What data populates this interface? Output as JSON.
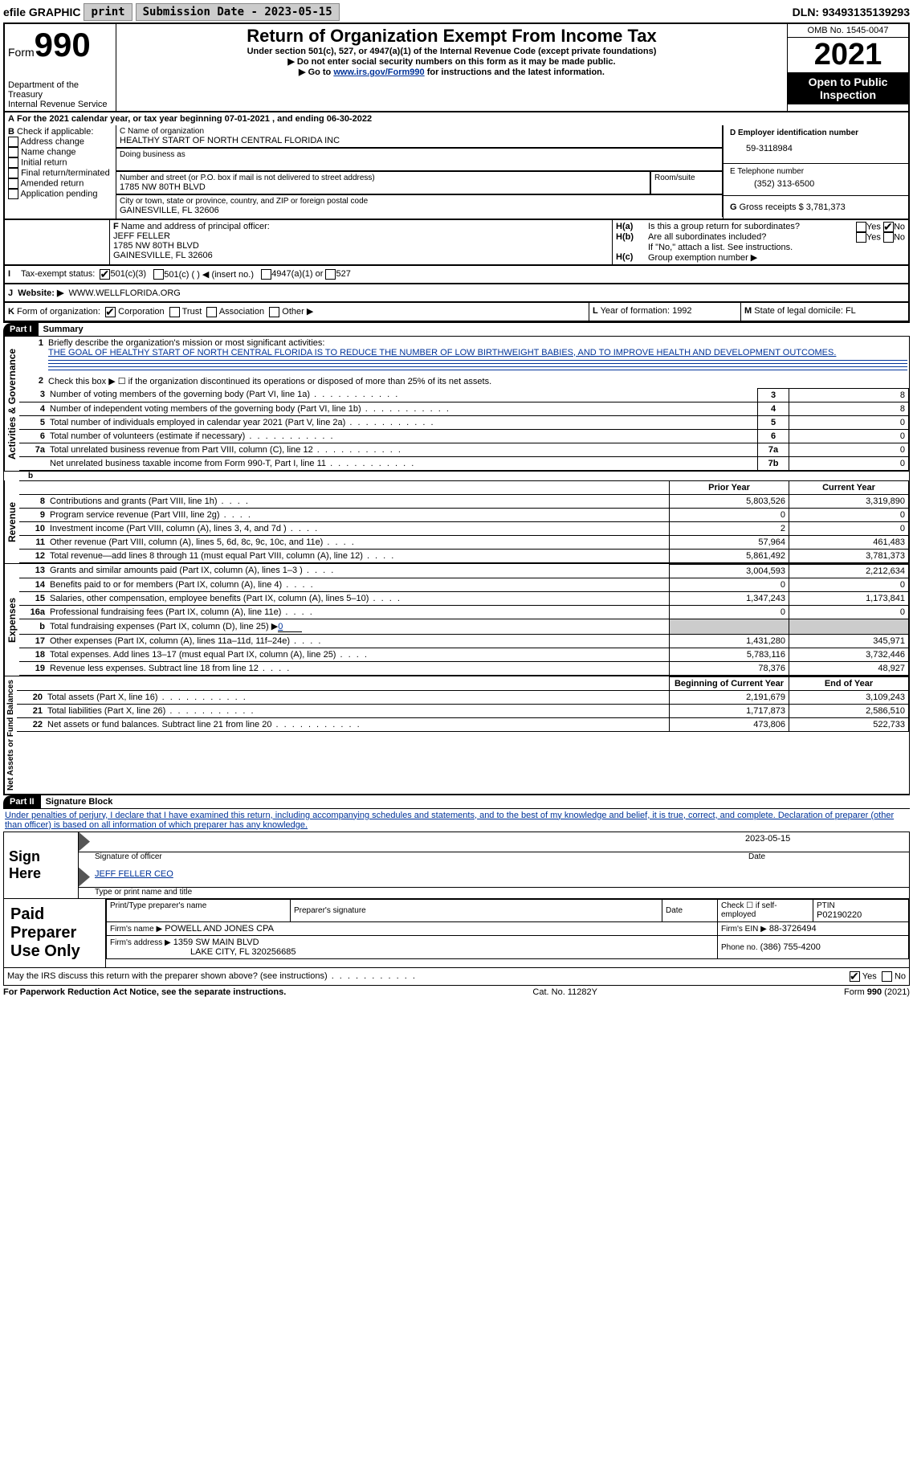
{
  "topbar": {
    "efile": "efile GRAPHIC",
    "print": "print",
    "sub_label": "Submission Date - 2023-05-15",
    "dln_label": "DLN: 93493135139293"
  },
  "header": {
    "form_word": "Form",
    "form_num": "990",
    "dept": "Department of the Treasury",
    "irs": "Internal Revenue Service",
    "title": "Return of Organization Exempt From Income Tax",
    "subtitle": "Under section 501(c), 527, or 4947(a)(1) of the Internal Revenue Code (except private foundations)",
    "line1": "▶ Do not enter social security numbers on this form as it may be made public.",
    "line2_pre": "▶ Go to ",
    "line2_link": "www.irs.gov/Form990",
    "line2_post": " for instructions and the latest information.",
    "omb": "OMB No. 1545-0047",
    "year": "2021",
    "open": "Open to Public Inspection"
  },
  "section_a": {
    "text_pre": "For the 2021 calendar year, or tax year beginning ",
    "begin": "07-01-2021",
    "mid": " , and ending ",
    "end": "06-30-2022"
  },
  "section_b": {
    "label": "B",
    "check_if": "Check if applicable:",
    "items": [
      "Address change",
      "Name change",
      "Initial return",
      "Final return/terminated",
      "Amended return",
      "Application pending"
    ]
  },
  "section_c": {
    "label_name": "C Name of organization",
    "org_name": "HEALTHY START OF NORTH CENTRAL FLORIDA INC",
    "dba_label": "Doing business as",
    "addr_label": "Number and street (or P.O. box if mail is not delivered to street address)",
    "room_label": "Room/suite",
    "addr": "1785 NW 80TH BLVD",
    "city_label": "City or town, state or province, country, and ZIP or foreign postal code",
    "city": "GAINESVILLE, FL  32606"
  },
  "section_d": {
    "label": "D Employer identification number",
    "ein": "59-3118984"
  },
  "section_e": {
    "label": "E Telephone number",
    "phone": "(352) 313-6500"
  },
  "section_g": {
    "label": "G",
    "text": "Gross receipts $",
    "amount": "3,781,373"
  },
  "section_f": {
    "label": "F",
    "text": "Name and address of principal officer:",
    "name": "JEFF FELLER",
    "addr1": "1785 NW 80TH BLVD",
    "addr2": "GAINESVILLE, FL  32606"
  },
  "section_h": {
    "a_label": "H(a)",
    "a_text": "Is this a group return for subordinates?",
    "b_label": "H(b)",
    "b_text": "Are all subordinates included?",
    "b_note": "If \"No,\" attach a list. See instructions.",
    "c_label": "H(c)",
    "c_text": "Group exemption number ▶",
    "yes": "Yes",
    "no": "No"
  },
  "section_i": {
    "label": "I",
    "text": "Tax-exempt status:",
    "opt1": "501(c)(3)",
    "opt2": "501(c) (   ) ◀ (insert no.)",
    "opt3": "4947(a)(1) or",
    "opt4": "527"
  },
  "section_j": {
    "label": "J",
    "text": "Website: ▶",
    "url": "WWW.WELLFLORIDA.ORG"
  },
  "section_k": {
    "label": "K",
    "text": "Form of organization:",
    "corp": "Corporation",
    "trust": "Trust",
    "assoc": "Association",
    "other": "Other ▶"
  },
  "section_l": {
    "label": "L",
    "text": "Year of formation: 1992"
  },
  "section_m": {
    "label": "M",
    "text": "State of legal domicile: FL"
  },
  "part1": {
    "label": "Part I",
    "title": "Summary",
    "line1_label": "1",
    "line1_text": "Briefly describe the organization's mission or most significant activities:",
    "mission": "THE GOAL OF HEALTHY START OF NORTH CENTRAL FLORIDA IS TO REDUCE THE NUMBER OF LOW BIRTHWEIGHT BABIES, AND TO IMPROVE HEALTH AND DEVELOPMENT OUTCOMES.",
    "line2_label": "2",
    "line2_text": "Check this box ▶ ☐ if the organization discontinued its operations or disposed of more than 25% of its net assets.",
    "vert_ag": "Activities & Governance",
    "vert_rev": "Revenue",
    "vert_exp": "Expenses",
    "vert_net": "Net Assets or Fund Balances",
    "rows_ag": [
      {
        "n": "3",
        "t": "Number of voting members of the governing body (Part VI, line 1a)",
        "box": "3",
        "v": "8"
      },
      {
        "n": "4",
        "t": "Number of independent voting members of the governing body (Part VI, line 1b)",
        "box": "4",
        "v": "8"
      },
      {
        "n": "5",
        "t": "Total number of individuals employed in calendar year 2021 (Part V, line 2a)",
        "box": "5",
        "v": "0"
      },
      {
        "n": "6",
        "t": "Total number of volunteers (estimate if necessary)",
        "box": "6",
        "v": "0"
      },
      {
        "n": "7a",
        "t": "Total unrelated business revenue from Part VIII, column (C), line 12",
        "box": "7a",
        "v": "0"
      },
      {
        "n": "",
        "t": "Net unrelated business taxable income from Form 990-T, Part I, line 11",
        "box": "7b",
        "v": "0"
      }
    ],
    "col_prior": "Prior Year",
    "col_current": "Current Year",
    "rows_rev": [
      {
        "n": "8",
        "t": "Contributions and grants (Part VIII, line 1h)",
        "p": "5,803,526",
        "c": "3,319,890"
      },
      {
        "n": "9",
        "t": "Program service revenue (Part VIII, line 2g)",
        "p": "0",
        "c": "0"
      },
      {
        "n": "10",
        "t": "Investment income (Part VIII, column (A), lines 3, 4, and 7d )",
        "p": "2",
        "c": "0"
      },
      {
        "n": "11",
        "t": "Other revenue (Part VIII, column (A), lines 5, 6d, 8c, 9c, 10c, and 11e)",
        "p": "57,964",
        "c": "461,483"
      },
      {
        "n": "12",
        "t": "Total revenue—add lines 8 through 11 (must equal Part VIII, column (A), line 12)",
        "p": "5,861,492",
        "c": "3,781,373"
      }
    ],
    "rows_exp": [
      {
        "n": "13",
        "t": "Grants and similar amounts paid (Part IX, column (A), lines 1–3 )",
        "p": "3,004,593",
        "c": "2,212,634"
      },
      {
        "n": "14",
        "t": "Benefits paid to or for members (Part IX, column (A), line 4)",
        "p": "0",
        "c": "0"
      },
      {
        "n": "15",
        "t": "Salaries, other compensation, employee benefits (Part IX, column (A), lines 5–10)",
        "p": "1,347,243",
        "c": "1,173,841"
      },
      {
        "n": "16a",
        "t": "Professional fundraising fees (Part IX, column (A), line 11e)",
        "p": "0",
        "c": "0"
      }
    ],
    "row_16b": {
      "n": "b",
      "t": "Total fundraising expenses (Part IX, column (D), line 25) ▶",
      "v": "0"
    },
    "rows_exp2": [
      {
        "n": "17",
        "t": "Other expenses (Part IX, column (A), lines 11a–11d, 11f–24e)",
        "p": "1,431,280",
        "c": "345,971"
      },
      {
        "n": "18",
        "t": "Total expenses. Add lines 13–17 (must equal Part IX, column (A), line 25)",
        "p": "5,783,116",
        "c": "3,732,446"
      },
      {
        "n": "19",
        "t": "Revenue less expenses. Subtract line 18 from line 12",
        "p": "78,376",
        "c": "48,927"
      }
    ],
    "col_begin": "Beginning of Current Year",
    "col_end": "End of Year",
    "rows_net": [
      {
        "n": "20",
        "t": "Total assets (Part X, line 16)",
        "p": "2,191,679",
        "c": "3,109,243"
      },
      {
        "n": "21",
        "t": "Total liabilities (Part X, line 26)",
        "p": "1,717,873",
        "c": "2,586,510"
      },
      {
        "n": "22",
        "t": "Net assets or fund balances. Subtract line 21 from line 20",
        "p": "473,806",
        "c": "522,733"
      }
    ]
  },
  "part2": {
    "label": "Part II",
    "title": "Signature Block",
    "penalties": "Under penalties of perjury, I declare that I have examined this return, including accompanying schedules and statements, and to the best of my knowledge and belief, it is true, correct, and complete. Declaration of preparer (other than officer) is based on all information of which preparer has any knowledge.",
    "sign_here": "Sign Here",
    "sig_officer": "Signature of officer",
    "sig_date": "2023-05-15",
    "date_label": "Date",
    "officer_name": "JEFF FELLER CEO",
    "type_name": "Type or print name and title",
    "paid": "Paid Preparer Use Only",
    "prep_name_label": "Print/Type preparer's name",
    "prep_sig_label": "Preparer's signature",
    "prep_date_label": "Date",
    "prep_check": "Check ☐ if self-employed",
    "ptin_label": "PTIN",
    "ptin": "P02190220",
    "firm_name_label": "Firm's name    ▶",
    "firm_name": "POWELL AND JONES CPA",
    "firm_ein_label": "Firm's EIN ▶",
    "firm_ein": "88-3726494",
    "firm_addr_label": "Firm's address ▶",
    "firm_addr": "1359 SW MAIN BLVD",
    "firm_city": "LAKE CITY, FL  320256685",
    "firm_phone_label": "Phone no.",
    "firm_phone": "(386) 755-4200",
    "may_irs": "May the IRS discuss this return with the preparer shown above? (see instructions)",
    "yes": "Yes",
    "no": "No"
  },
  "footer": {
    "left": "For Paperwork Reduction Act Notice, see the separate instructions.",
    "mid": "Cat. No. 11282Y",
    "right": "Form 990 (2021)"
  }
}
